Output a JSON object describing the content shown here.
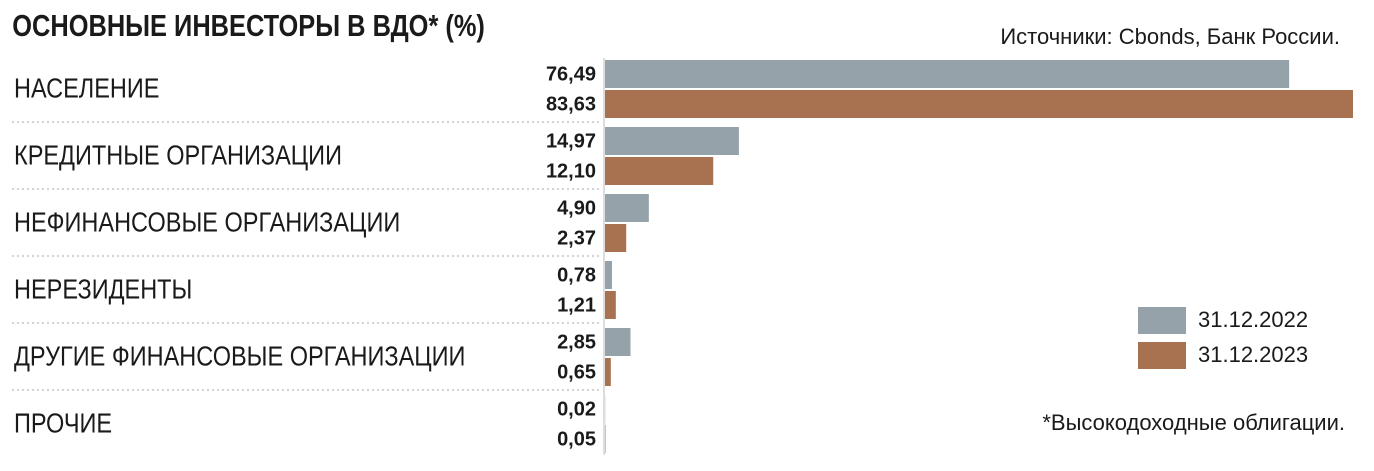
{
  "chart_data": {
    "type": "bar",
    "orientation": "horizontal",
    "title": "ОСНОВНЫЕ ИНВЕСТОРЫ В ВДО* (%)",
    "source": "Источники: Cbonds, Банк России.",
    "footnote": "*Высокодоходные облигации.",
    "categories": [
      "НАСЕЛЕНИЕ",
      "КРЕДИТНЫЕ ОРГАНИЗАЦИИ",
      "НЕФИНАНСОВЫЕ ОРГАНИЗАЦИИ",
      "НЕРЕЗИДЕНТЫ",
      "ДРУГИЕ ФИНАНСОВЫЕ ОРГАНИЗАЦИИ",
      "ПРОЧИЕ"
    ],
    "series": [
      {
        "name": "31.12.2022",
        "color": "#95a2a9",
        "values": [
          76.49,
          14.97,
          4.9,
          0.78,
          2.85,
          0.02
        ],
        "value_labels": [
          "76,49",
          "14,97",
          "4,90",
          "0,78",
          "2,85",
          "0,02"
        ]
      },
      {
        "name": "31.12.2023",
        "color": "#a87150",
        "values": [
          83.63,
          12.1,
          2.37,
          1.21,
          0.65,
          0.05
        ],
        "value_labels": [
          "83,63",
          "12,10",
          "2,37",
          "1,21",
          "0,65",
          "0,05"
        ]
      }
    ]
  }
}
